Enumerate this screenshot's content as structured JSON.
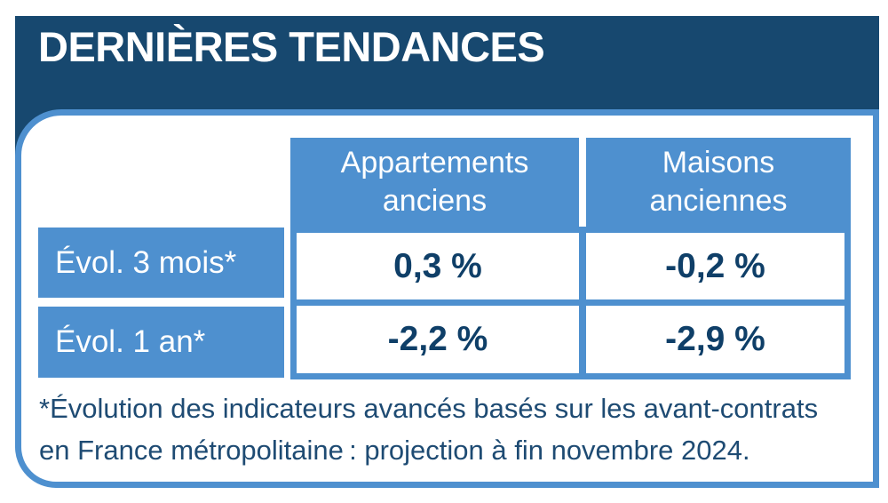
{
  "card": {
    "title": "DERNIÈRES TENDANCES",
    "colors": {
      "navy": "#17486F",
      "blue": "#4E90CF",
      "value_text": "#0F3F68",
      "footnote_text": "#1E4B73",
      "header_text": "#FFFFFF",
      "label_text": "#FFFFFF"
    }
  },
  "table": {
    "headers": [
      {
        "line1": "Appartements",
        "line2": "anciens"
      },
      {
        "line1": "Maisons",
        "line2": "anciennes"
      }
    ],
    "rows": [
      {
        "label": "Évol. 3 mois*",
        "values": [
          "0,3 %",
          "-0,2 %"
        ]
      },
      {
        "label": "Évol. 1 an*",
        "values": [
          "-2,2 %",
          "-2,9 %"
        ]
      }
    ]
  },
  "footnote": {
    "line1": "*Évolution des indicateurs avancés basés sur les avant-contrats",
    "line2": "en France métropolitaine : projection à fin novembre 2024."
  },
  "chart_data": {
    "type": "table",
    "title": "DERNIÈRES TENDANCES",
    "columns": [
      "",
      "Appartements anciens",
      "Maisons anciennes"
    ],
    "rows": [
      [
        "Évol. 3 mois*",
        "0,3 %",
        "-0,2 %"
      ],
      [
        "Évol. 1 an*",
        "-2,2 %",
        "-2,9 %"
      ]
    ],
    "numeric_values_percent": {
      "appartements_anciens": {
        "evol_3_mois": 0.3,
        "evol_1_an": -2.2
      },
      "maisons_anciennes": {
        "evol_3_mois": -0.2,
        "evol_1_an": -2.9
      }
    },
    "footnote": "*Évolution des indicateurs avancés basés sur les avant-contrats en France métropolitaine : projection à fin novembre 2024."
  }
}
